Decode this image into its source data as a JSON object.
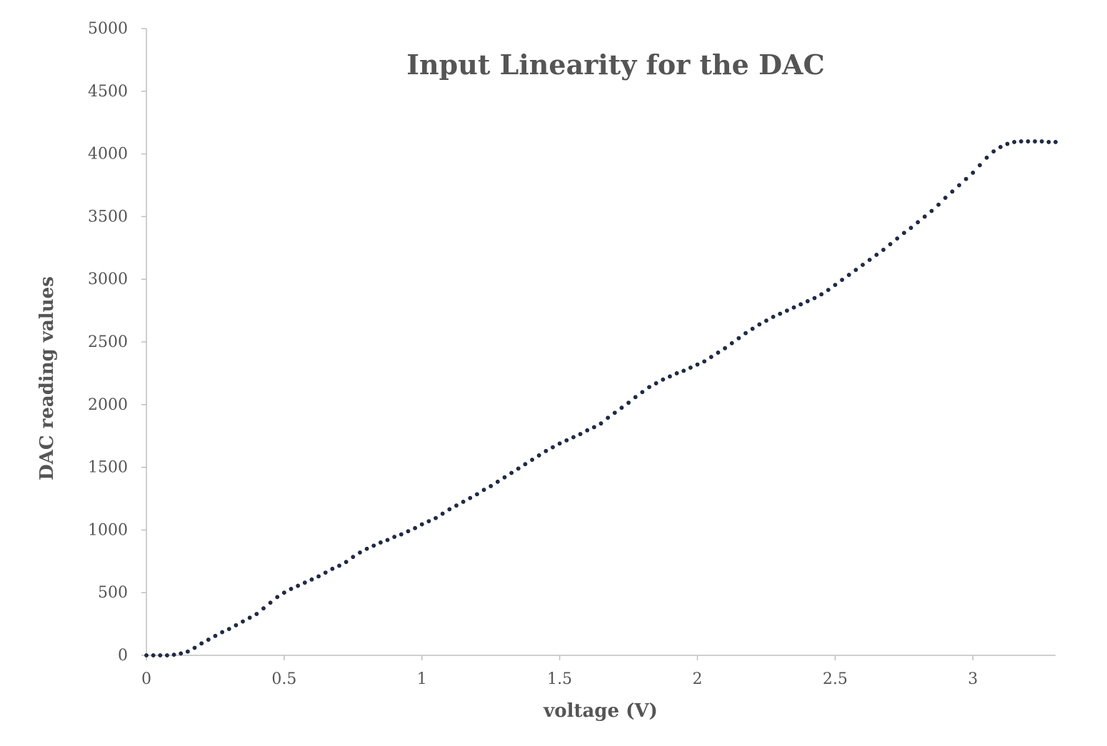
{
  "chart_data": {
    "type": "scatter",
    "title": "Input Linearity for the DAC",
    "xlabel": "voltage (V)",
    "ylabel": "DAC reading values",
    "xlim": [
      0,
      3.3
    ],
    "ylim": [
      0,
      5000
    ],
    "x_ticks": [
      "0",
      "0.5",
      "1",
      "1.5",
      "2",
      "2.5",
      "3"
    ],
    "y_ticks": [
      "0",
      "500",
      "1000",
      "1500",
      "2000",
      "2500",
      "3000",
      "3500",
      "4000",
      "4500",
      "5000"
    ],
    "grid": false,
    "marker_color": "#1f2d4d",
    "axis_color": "#bfbfbf",
    "text_color": "#555555",
    "points": [
      [
        0.0,
        0
      ],
      [
        0.025,
        0
      ],
      [
        0.05,
        0
      ],
      [
        0.075,
        0
      ],
      [
        0.1,
        5
      ],
      [
        0.125,
        15
      ],
      [
        0.15,
        30
      ],
      [
        0.175,
        60
      ],
      [
        0.2,
        95
      ],
      [
        0.225,
        125
      ],
      [
        0.25,
        155
      ],
      [
        0.275,
        185
      ],
      [
        0.3,
        210
      ],
      [
        0.325,
        240
      ],
      [
        0.35,
        270
      ],
      [
        0.375,
        300
      ],
      [
        0.4,
        330
      ],
      [
        0.425,
        375
      ],
      [
        0.45,
        420
      ],
      [
        0.475,
        465
      ],
      [
        0.5,
        500
      ],
      [
        0.525,
        530
      ],
      [
        0.55,
        555
      ],
      [
        0.575,
        580
      ],
      [
        0.6,
        605
      ],
      [
        0.625,
        630
      ],
      [
        0.65,
        660
      ],
      [
        0.675,
        690
      ],
      [
        0.7,
        715
      ],
      [
        0.725,
        745
      ],
      [
        0.75,
        785
      ],
      [
        0.775,
        820
      ],
      [
        0.8,
        850
      ],
      [
        0.825,
        875
      ],
      [
        0.85,
        900
      ],
      [
        0.875,
        920
      ],
      [
        0.9,
        945
      ],
      [
        0.925,
        965
      ],
      [
        0.95,
        990
      ],
      [
        0.975,
        1015
      ],
      [
        1.0,
        1045
      ],
      [
        1.025,
        1070
      ],
      [
        1.05,
        1095
      ],
      [
        1.075,
        1130
      ],
      [
        1.1,
        1165
      ],
      [
        1.125,
        1195
      ],
      [
        1.15,
        1225
      ],
      [
        1.175,
        1255
      ],
      [
        1.2,
        1285
      ],
      [
        1.225,
        1320
      ],
      [
        1.25,
        1350
      ],
      [
        1.275,
        1385
      ],
      [
        1.3,
        1420
      ],
      [
        1.325,
        1455
      ],
      [
        1.35,
        1490
      ],
      [
        1.375,
        1525
      ],
      [
        1.4,
        1560
      ],
      [
        1.425,
        1595
      ],
      [
        1.45,
        1630
      ],
      [
        1.475,
        1660
      ],
      [
        1.5,
        1690
      ],
      [
        1.525,
        1715
      ],
      [
        1.55,
        1740
      ],
      [
        1.575,
        1765
      ],
      [
        1.6,
        1795
      ],
      [
        1.625,
        1820
      ],
      [
        1.65,
        1850
      ],
      [
        1.675,
        1895
      ],
      [
        1.7,
        1935
      ],
      [
        1.725,
        1975
      ],
      [
        1.75,
        2015
      ],
      [
        1.775,
        2060
      ],
      [
        1.8,
        2100
      ],
      [
        1.825,
        2140
      ],
      [
        1.85,
        2170
      ],
      [
        1.875,
        2200
      ],
      [
        1.9,
        2225
      ],
      [
        1.925,
        2250
      ],
      [
        1.95,
        2270
      ],
      [
        1.975,
        2295
      ],
      [
        2.0,
        2320
      ],
      [
        2.025,
        2345
      ],
      [
        2.05,
        2380
      ],
      [
        2.075,
        2415
      ],
      [
        2.1,
        2450
      ],
      [
        2.125,
        2490
      ],
      [
        2.15,
        2530
      ],
      [
        2.175,
        2570
      ],
      [
        2.2,
        2605
      ],
      [
        2.225,
        2640
      ],
      [
        2.25,
        2670
      ],
      [
        2.275,
        2700
      ],
      [
        2.3,
        2725
      ],
      [
        2.325,
        2750
      ],
      [
        2.35,
        2775
      ],
      [
        2.375,
        2800
      ],
      [
        2.4,
        2825
      ],
      [
        2.425,
        2850
      ],
      [
        2.45,
        2880
      ],
      [
        2.475,
        2915
      ],
      [
        2.5,
        2955
      ],
      [
        2.525,
        2995
      ],
      [
        2.55,
        3035
      ],
      [
        2.575,
        3075
      ],
      [
        2.6,
        3115
      ],
      [
        2.625,
        3155
      ],
      [
        2.65,
        3195
      ],
      [
        2.675,
        3235
      ],
      [
        2.7,
        3280
      ],
      [
        2.725,
        3325
      ],
      [
        2.75,
        3370
      ],
      [
        2.775,
        3410
      ],
      [
        2.8,
        3455
      ],
      [
        2.825,
        3500
      ],
      [
        2.85,
        3545
      ],
      [
        2.875,
        3595
      ],
      [
        2.9,
        3650
      ],
      [
        2.925,
        3700
      ],
      [
        2.95,
        3750
      ],
      [
        2.975,
        3800
      ],
      [
        3.0,
        3850
      ],
      [
        3.025,
        3910
      ],
      [
        3.05,
        3970
      ],
      [
        3.075,
        4020
      ],
      [
        3.1,
        4055
      ],
      [
        3.125,
        4080
      ],
      [
        3.15,
        4095
      ],
      [
        3.175,
        4100
      ],
      [
        3.2,
        4100
      ],
      [
        3.225,
        4100
      ],
      [
        3.25,
        4100
      ],
      [
        3.275,
        4095
      ],
      [
        3.3,
        4095
      ]
    ]
  }
}
